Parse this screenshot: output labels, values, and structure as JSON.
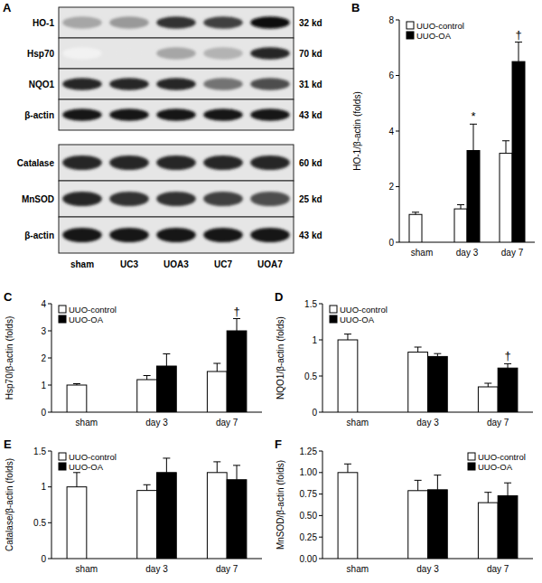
{
  "blot": {
    "panel": "A",
    "lanes": [
      "sham",
      "UC3",
      "UOA3",
      "UC7",
      "UOA7"
    ],
    "groups": [
      {
        "rows": [
          {
            "label": "HO-1",
            "kd": "32 kd",
            "intensity": [
              0.35,
              0.4,
              0.8,
              0.75,
              0.95
            ]
          },
          {
            "label": "Hsp70",
            "kd": "70 kd",
            "intensity": [
              0.05,
              0.1,
              0.35,
              0.3,
              0.85
            ]
          },
          {
            "label": "NQO1",
            "kd": "31 kd",
            "intensity": [
              0.85,
              0.85,
              0.85,
              0.55,
              0.7
            ]
          },
          {
            "label": "β-actin",
            "kd": "43 kd",
            "intensity": [
              0.9,
              0.9,
              0.9,
              0.9,
              0.9
            ]
          }
        ]
      },
      {
        "rows": [
          {
            "label": "Catalase",
            "kd": "60 kd",
            "intensity": [
              0.85,
              0.85,
              0.85,
              0.85,
              0.85
            ]
          },
          {
            "label": "MnSOD",
            "kd": "25 kd",
            "intensity": [
              0.85,
              0.8,
              0.8,
              0.75,
              0.7
            ]
          },
          {
            "label": "β-actin",
            "kd": "43 kd",
            "intensity": [
              0.9,
              0.9,
              0.9,
              0.9,
              0.9
            ]
          }
        ]
      }
    ]
  },
  "chart_data": [
    {
      "type": "bar",
      "panel": "B",
      "y_label": "HO-1/β-actin (folds)",
      "categories": [
        "sham",
        "day 3",
        "day 7"
      ],
      "series": [
        {
          "name": "UUO-control",
          "color": "#ffffff",
          "values": [
            1.0,
            1.2,
            3.2
          ],
          "errors": [
            0.08,
            0.15,
            0.45
          ]
        },
        {
          "name": "UUO-OA",
          "color": "#000000",
          "values": [
            null,
            3.3,
            6.5
          ],
          "errors": [
            null,
            0.95,
            0.7
          ],
          "significance": [
            null,
            "*",
            "†"
          ]
        }
      ],
      "ylim": [
        0,
        8
      ],
      "yticks": [
        0,
        2,
        4,
        6,
        8
      ],
      "grid": false,
      "legend": "top-left"
    },
    {
      "type": "bar",
      "panel": "C",
      "y_label": "Hsp70/β-actin (folds)",
      "categories": [
        "sham",
        "day 3",
        "day 7"
      ],
      "series": [
        {
          "name": "UUO-control",
          "color": "#ffffff",
          "values": [
            1.0,
            1.2,
            1.5
          ],
          "errors": [
            0.05,
            0.15,
            0.3
          ]
        },
        {
          "name": "UUO-OA",
          "color": "#000000",
          "values": [
            null,
            1.7,
            3.0
          ],
          "errors": [
            null,
            0.45,
            0.45
          ],
          "significance": [
            null,
            null,
            "†"
          ]
        }
      ],
      "ylim": [
        0,
        4
      ],
      "yticks": [
        0,
        1,
        2,
        3,
        4
      ],
      "grid": false,
      "legend": "top-left"
    },
    {
      "type": "bar",
      "panel": "D",
      "y_label": "NQO1/β-actin (folds)",
      "categories": [
        "sham",
        "day 3",
        "day 7"
      ],
      "series": [
        {
          "name": "UUO-control",
          "color": "#ffffff",
          "values": [
            1.0,
            0.83,
            0.35
          ],
          "errors": [
            0.08,
            0.07,
            0.05
          ]
        },
        {
          "name": "UUO-OA",
          "color": "#000000",
          "values": [
            null,
            0.77,
            0.61
          ],
          "errors": [
            null,
            0.04,
            0.06
          ],
          "significance": [
            null,
            null,
            "†"
          ]
        }
      ],
      "ylim": [
        0,
        1.5
      ],
      "yticks": [
        0,
        0.5,
        1,
        1.5
      ],
      "grid": false,
      "legend": "top-left"
    },
    {
      "type": "bar",
      "panel": "E",
      "y_label": "Catalase/β-actin (folds)",
      "categories": [
        "sham",
        "day 3",
        "day 7"
      ],
      "series": [
        {
          "name": "UUO-control",
          "color": "#ffffff",
          "values": [
            1.0,
            0.95,
            1.2
          ],
          "errors": [
            0.2,
            0.08,
            0.15
          ]
        },
        {
          "name": "UUO-OA",
          "color": "#000000",
          "values": [
            null,
            1.2,
            1.1
          ],
          "errors": [
            null,
            0.2,
            0.2
          ]
        }
      ],
      "ylim": [
        0,
        1.5
      ],
      "yticks": [
        0,
        0.5,
        1,
        1.5
      ],
      "grid": false,
      "legend": "top-left"
    },
    {
      "type": "bar",
      "panel": "F",
      "y_label": "MnSOD/β-actin (folds)",
      "categories": [
        "sham",
        "day 3",
        "day 7"
      ],
      "series": [
        {
          "name": "UUO-control",
          "color": "#ffffff",
          "values": [
            1.0,
            0.79,
            0.65
          ],
          "errors": [
            0.1,
            0.12,
            0.12
          ]
        },
        {
          "name": "UUO-OA",
          "color": "#000000",
          "values": [
            null,
            0.8,
            0.73
          ],
          "errors": [
            null,
            0.17,
            0.15
          ]
        }
      ],
      "ylim": [
        0,
        1.25
      ],
      "yticks": [
        {
          "value": 0,
          "label": "0.00"
        },
        {
          "value": 0.25,
          "label": "0.25"
        },
        {
          "value": 0.5,
          "label": "0.50"
        },
        {
          "value": 0.75,
          "label": "0.75"
        },
        {
          "value": 1,
          "label": "1.00"
        },
        {
          "value": 1.25,
          "label": "1.25"
        }
      ],
      "grid": false,
      "legend": "top-right"
    }
  ]
}
